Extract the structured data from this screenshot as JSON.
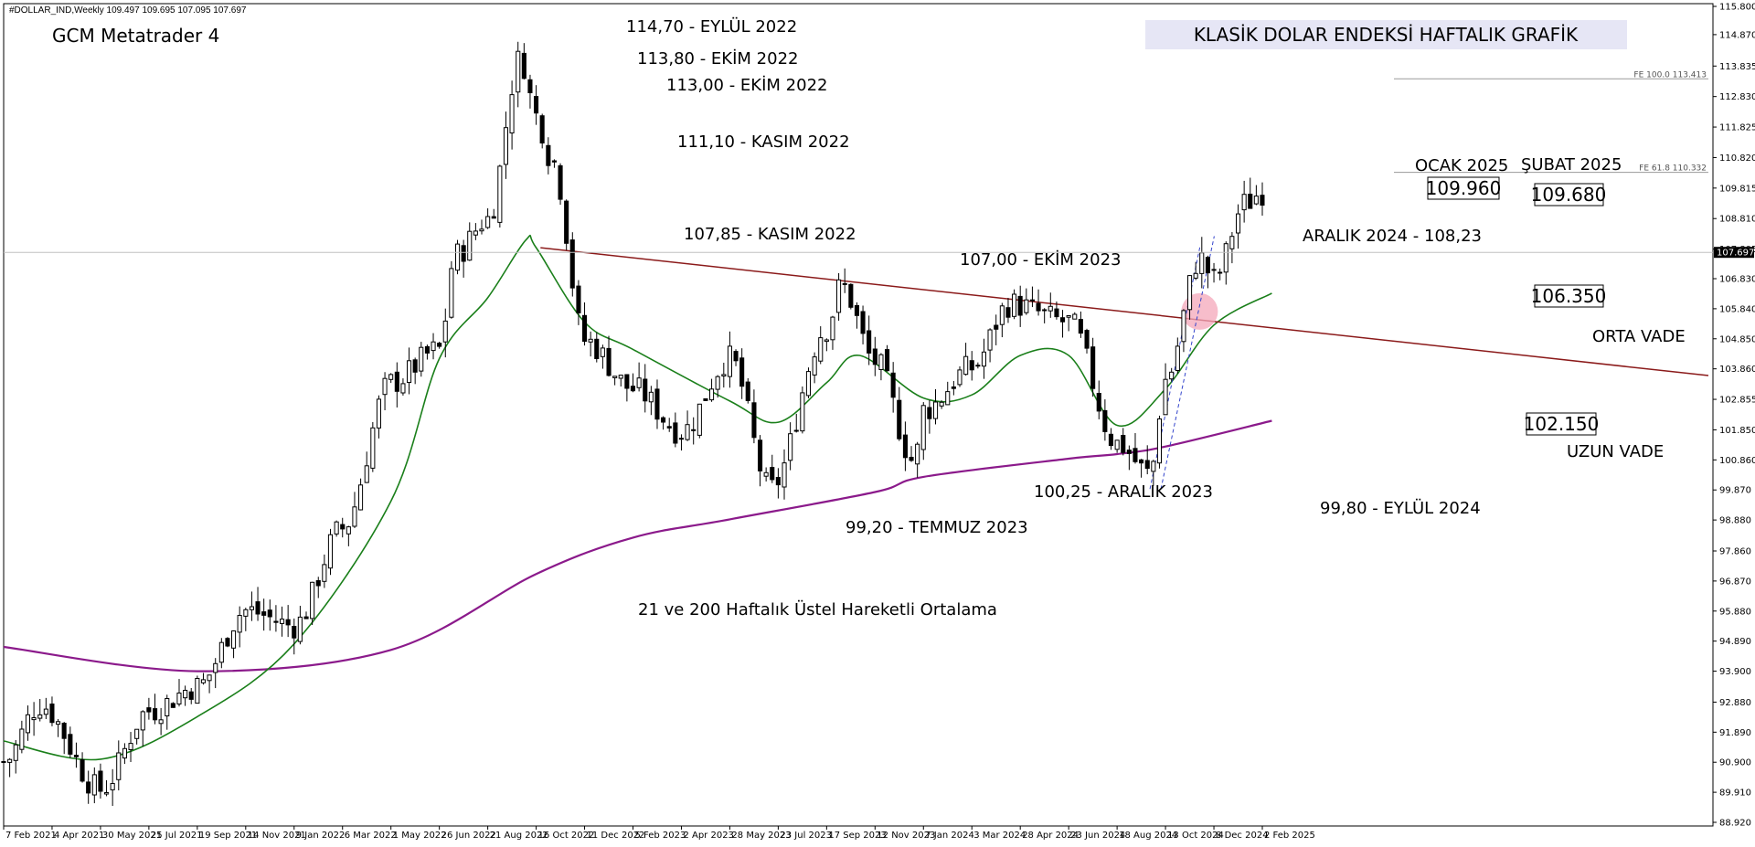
{
  "header": {
    "symbol_line": "#DOLLAR_IND,Weekly  109.497 109.695 107.095 107.697",
    "platform": "GCM Metatrader 4",
    "title": "KLASİK DOLAR ENDEKSİ HAFTALIK GRAFİK",
    "subtitle": "21 ve 200 Haftalık Üstel Hareketli Ortalama"
  },
  "colors": {
    "background": "#ffffff",
    "title_box": "#e6e6f5",
    "ema21": "#1a7f1a",
    "ema200": "#8b1a8b",
    "trendline": "#8b1a1a",
    "highlight": "#f4a7b9",
    "dashed_channel": "#3344cc",
    "candle_up": "#ffffff",
    "candle_down": "#000000"
  },
  "chart_data": {
    "type": "candlestick",
    "title": "KLASİK DOLAR ENDEKSİ HAFTALIK GRAFİK",
    "timeframe": "Weekly",
    "current_price": "107.697",
    "ylim": [
      88.92,
      115.8
    ],
    "y_ticks": [
      "115.800",
      "114.870",
      "113.835",
      "112.830",
      "111.825",
      "110.820",
      "109.815",
      "108.810",
      "107.805",
      "106.830",
      "105.840",
      "104.850",
      "103.860",
      "102.855",
      "101.850",
      "100.860",
      "99.870",
      "98.880",
      "97.860",
      "96.870",
      "95.880",
      "94.890",
      "93.900",
      "92.880",
      "91.890",
      "90.900",
      "89.910",
      "88.920"
    ],
    "x_ticks": [
      "7 Feb 2021",
      "4 Apr 2021",
      "30 May 2021",
      "25 Jul 2021",
      "19 Sep 2021",
      "14 Nov 2021",
      "9 Jan 2022",
      "6 Mar 2022",
      "1 May 2022",
      "26 Jun 2022",
      "21 Aug 2022",
      "16 Oct 2022",
      "11 Dec 2022",
      "5 Feb 2023",
      "2 Apr 2023",
      "28 May 2023",
      "23 Jul 2023",
      "17 Sep 2023",
      "12 Nov 2023",
      "7 Jan 2024",
      "3 Mar 2024",
      "28 Apr 2024",
      "23 Jun 2024",
      "18 Aug 2024",
      "13 Oct 2024",
      "8 Dec 2024",
      "2 Feb 2025"
    ],
    "weekly_close_anchors": [
      {
        "date": "7 Feb 2021",
        "value": 90.9
      },
      {
        "date": "21 Mar 2021",
        "value": 92.8
      },
      {
        "date": "30 May 2021",
        "value": 90.0
      },
      {
        "date": "25 Jul 2021",
        "value": 92.6
      },
      {
        "date": "19 Sep 2021",
        "value": 93.4
      },
      {
        "date": "14 Nov 2021",
        "value": 95.9
      },
      {
        "date": "9 Jan 2022",
        "value": 95.4
      },
      {
        "date": "6 Mar 2022",
        "value": 98.6
      },
      {
        "date": "1 May 2022",
        "value": 103.4
      },
      {
        "date": "26 Jun 2022",
        "value": 104.5
      },
      {
        "date": "14 Jul 2022",
        "value": 107.6
      },
      {
        "date": "21 Aug 2022",
        "value": 108.8
      },
      {
        "date": "28 Sep 2022",
        "value": 114.1
      },
      {
        "date": "16 Oct 2022",
        "value": 112.2
      },
      {
        "date": "4 Nov 2022",
        "value": 110.7
      },
      {
        "date": "11 Dec 2022",
        "value": 104.8
      },
      {
        "date": "5 Feb 2023",
        "value": 103.2
      },
      {
        "date": "2 Apr 2023",
        "value": 101.8
      },
      {
        "date": "28 May 2023",
        "value": 104.2
      },
      {
        "date": "14 Jul 2023",
        "value": 99.9
      },
      {
        "date": "17 Sep 2023",
        "value": 105.2
      },
      {
        "date": "4 Oct 2023",
        "value": 106.6
      },
      {
        "date": "12 Nov 2023",
        "value": 104.1
      },
      {
        "date": "28 Dec 2023",
        "value": 100.8
      },
      {
        "date": "7 Jan 2024",
        "value": 102.5
      },
      {
        "date": "3 Mar 2024",
        "value": 103.9
      },
      {
        "date": "16 Apr 2024",
        "value": 106.0
      },
      {
        "date": "23 Jun 2024",
        "value": 105.4
      },
      {
        "date": "18 Aug 2024",
        "value": 101.4
      },
      {
        "date": "25 Sep 2024",
        "value": 100.4
      },
      {
        "date": "13 Oct 2024",
        "value": 103.5
      },
      {
        "date": "22 Nov 2024",
        "value": 107.5
      },
      {
        "date": "8 Dec 2024",
        "value": 106.8
      },
      {
        "date": "13 Jan 2025",
        "value": 109.3
      },
      {
        "date": "2 Feb 2025",
        "value": 109.7
      }
    ],
    "ema21": [
      {
        "date": "7 Feb 2021",
        "value": 91.6
      },
      {
        "date": "30 May 2021",
        "value": 91.0
      },
      {
        "date": "19 Sep 2021",
        "value": 92.4
      },
      {
        "date": "9 Jan 2022",
        "value": 94.8
      },
      {
        "date": "1 May 2022",
        "value": 99.5
      },
      {
        "date": "26 Jun 2022",
        "value": 104.2
      },
      {
        "date": "21 Aug 2022",
        "value": 106.2
      },
      {
        "date": "4 Oct 2022",
        "value": 108.1
      },
      {
        "date": "16 Oct 2022",
        "value": 107.85
      },
      {
        "date": "11 Dec 2022",
        "value": 105.4
      },
      {
        "date": "5 Feb 2023",
        "value": 104.5
      },
      {
        "date": "28 May 2023",
        "value": 102.8
      },
      {
        "date": "23 Jul 2023",
        "value": 102.1
      },
      {
        "date": "17 Sep 2023",
        "value": 103.4
      },
      {
        "date": "25 Oct 2023",
        "value": 104.3
      },
      {
        "date": "7 Jan 2024",
        "value": 102.9
      },
      {
        "date": "3 Mar 2024",
        "value": 103.0
      },
      {
        "date": "28 Apr 2024",
        "value": 104.3
      },
      {
        "date": "23 Jun 2024",
        "value": 104.3
      },
      {
        "date": "18 Aug 2024",
        "value": 102.0
      },
      {
        "date": "13 Oct 2024",
        "value": 103.2
      },
      {
        "date": "8 Dec 2024",
        "value": 105.3
      },
      {
        "date": "13 Feb 2025",
        "value": 106.35
      }
    ],
    "ema200": [
      {
        "date": "7 Feb 2021",
        "value": 94.7
      },
      {
        "date": "19 Sep 2021",
        "value": 93.9
      },
      {
        "date": "1 May 2022",
        "value": 94.6
      },
      {
        "date": "16 Oct 2022",
        "value": 97.1
      },
      {
        "date": "5 Feb 2023",
        "value": 98.3
      },
      {
        "date": "28 May 2023",
        "value": 98.9
      },
      {
        "date": "12 Nov 2023",
        "value": 99.8
      },
      {
        "date": "7 Jan 2024",
        "value": 100.3
      },
      {
        "date": "23 Jun 2024",
        "value": 100.9
      },
      {
        "date": "18 Aug 2024",
        "value": 101.05
      },
      {
        "date": "13 Oct 2024",
        "value": 101.3
      },
      {
        "date": "13 Feb 2025",
        "value": 102.15
      }
    ],
    "trendline": {
      "from": {
        "date": "21 Oct 2022",
        "value": 107.85
      },
      "to": {
        "date": "5 Mar 2025",
        "value": 105.15
      }
    },
    "fibo_levels": [
      {
        "label": "FE 100.0 113.413",
        "value": 113.413
      },
      {
        "label": "FE 61.8 110.332",
        "value": 110.332
      }
    ],
    "annotations": [
      "114,70 - EYLÜL 2022",
      "113,80 - EKİM 2022",
      "113,00 - EKİM 2022",
      "111,10 - KASIM 2022",
      "107,85 - KASIM 2022",
      "107,00 - EKİM 2023",
      "100,25 - ARALIK 2023",
      "99,20 - TEMMUZ 2023",
      "99,80 - EYLÜL 2024",
      "ARALIK 2024 - 108,23",
      "OCAK 2025",
      "ŞUBAT 2025"
    ],
    "price_boxes": [
      "109.960",
      "109.680",
      "106.350",
      "102.150"
    ],
    "side_labels": [
      "ORTA VADE",
      "UZUN VADE"
    ]
  }
}
